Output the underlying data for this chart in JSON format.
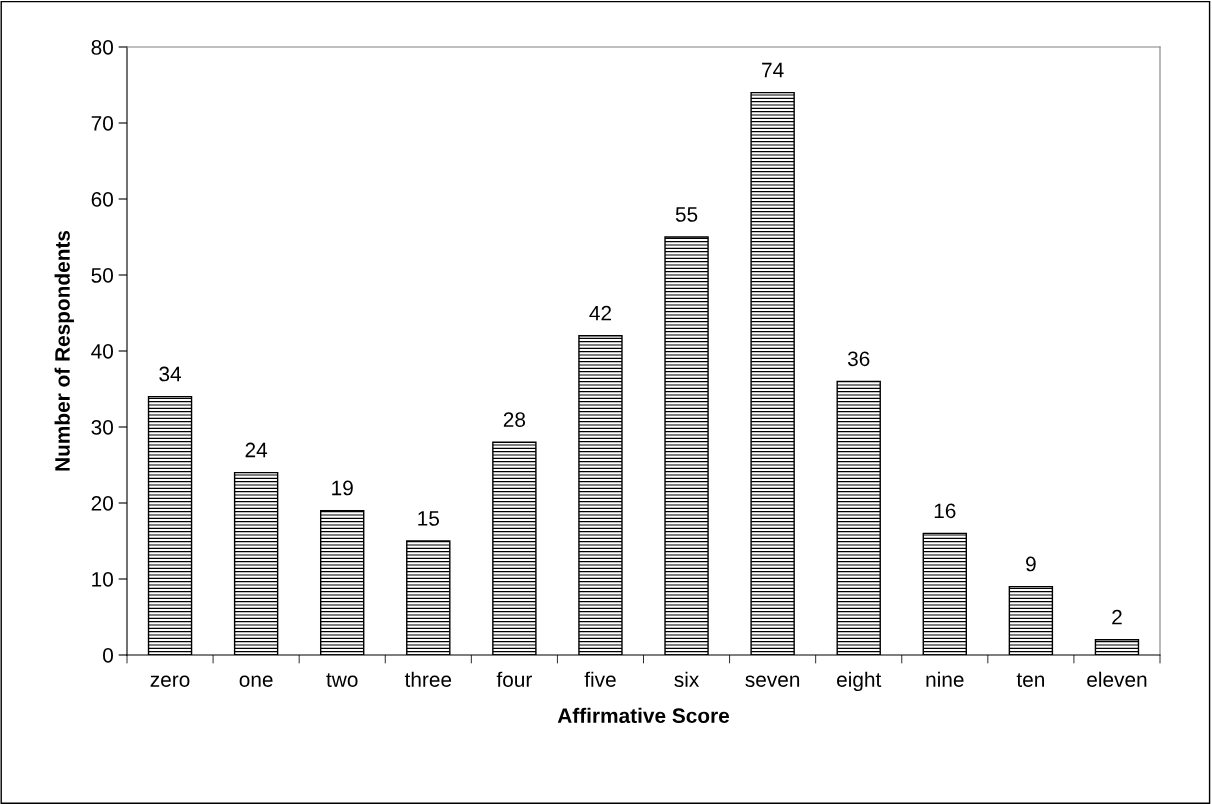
{
  "chart_data": {
    "type": "bar",
    "xlabel": "Affirmative Score",
    "ylabel": "Number of Respondents",
    "categories": [
      "zero",
      "one",
      "two",
      "three",
      "four",
      "five",
      "six",
      "seven",
      "eight",
      "nine",
      "ten",
      "eleven"
    ],
    "values": [
      34,
      24,
      19,
      15,
      28,
      42,
      55,
      74,
      36,
      16,
      9,
      2
    ],
    "color": "#000000",
    "ylim": [
      0,
      80
    ],
    "yticks": [
      0,
      10,
      20,
      30,
      40,
      50,
      60,
      70,
      80
    ],
    "data_labels": true,
    "grid": false,
    "legend": false
  }
}
